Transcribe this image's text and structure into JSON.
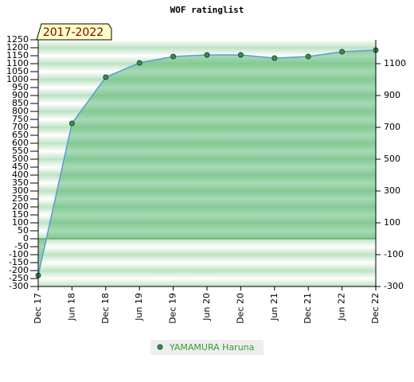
{
  "chart_data": {
    "type": "area",
    "title": "WOF ratinglist",
    "badge": "2017-2022",
    "categories": [
      "Dec 17",
      "Jun 18",
      "Dec 18",
      "Jun 19",
      "Dec 19",
      "Jun 20",
      "Dec 20",
      "Jun 21",
      "Dec 21",
      "Jun 22",
      "Dec 22"
    ],
    "series": [
      {
        "name": "YAMAMURA Haruna",
        "color": "#5b9bd5",
        "values": [
          -230,
          725,
          1015,
          1105,
          1145,
          1155,
          1155,
          1135,
          1145,
          1175,
          1185
        ]
      }
    ],
    "ylim": [
      -300,
      1250
    ],
    "yticks": [
      -300,
      -250,
      -200,
      -150,
      -100,
      -50,
      0,
      50,
      100,
      150,
      200,
      250,
      300,
      350,
      400,
      450,
      500,
      550,
      600,
      650,
      700,
      750,
      800,
      850,
      900,
      950,
      1000,
      1050,
      1100,
      1150,
      1200,
      1250
    ],
    "y2lim": [
      -300,
      1250
    ],
    "y2ticks": [
      -300,
      -100,
      100,
      300,
      500,
      700,
      900,
      1100
    ]
  }
}
